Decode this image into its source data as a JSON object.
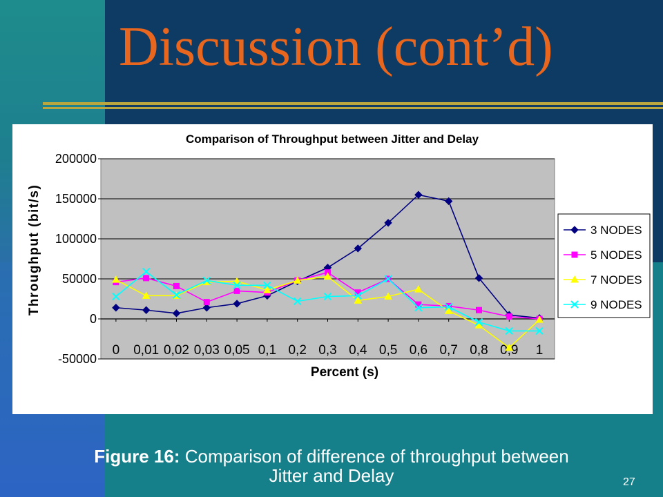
{
  "slide": {
    "title": "Discussion (cont’d)",
    "caption_label": "Figure 16:",
    "caption_line1": "Comparison of difference of throughput between",
    "caption_line2": "Jitter and Delay",
    "page_number": "27"
  },
  "chart_data": {
    "type": "line",
    "title": "Comparison of Throughput between Jitter and Delay",
    "xlabel": "Percent (s)",
    "ylabel": "Throughput (bit/s)",
    "categories": [
      "0",
      "0,01",
      "0,02",
      "0,03",
      "0,05",
      "0,1",
      "0,2",
      "0,3",
      "0,4",
      "0,5",
      "0,6",
      "0,7",
      "0,8",
      "0,9",
      "1"
    ],
    "ylim": [
      -50000,
      200000
    ],
    "yticks": [
      "200000",
      "150000",
      "100000",
      "50000",
      "0",
      "-50000"
    ],
    "ytick_values": [
      200000,
      150000,
      100000,
      50000,
      0,
      -50000
    ],
    "grid": true,
    "legend_position": "right",
    "series": [
      {
        "name": "3 NODES",
        "color": "#000080",
        "marker": "diamond",
        "values": [
          14000,
          11000,
          7000,
          14000,
          19000,
          29000,
          47000,
          64000,
          88000,
          120000,
          155000,
          147000,
          51000,
          5000,
          1000
        ]
      },
      {
        "name": "5 NODES",
        "color": "#ff00ff",
        "marker": "square",
        "values": [
          46000,
          51000,
          41000,
          21000,
          35000,
          33000,
          48000,
          58000,
          33000,
          50000,
          18000,
          16000,
          11000,
          3000,
          0
        ]
      },
      {
        "name": "7 NODES",
        "color": "#ffff00",
        "marker": "triangle",
        "values": [
          49000,
          29000,
          29000,
          46000,
          47000,
          36000,
          48000,
          53000,
          23000,
          28000,
          37000,
          10000,
          -8000,
          -36000,
          -1000
        ]
      },
      {
        "name": "9 NODES",
        "color": "#00ffff",
        "marker": "x",
        "values": [
          28000,
          59000,
          30000,
          48000,
          42000,
          42000,
          22000,
          28000,
          29000,
          50000,
          14000,
          15000,
          -4000,
          -15000,
          -15000
        ]
      }
    ]
  }
}
